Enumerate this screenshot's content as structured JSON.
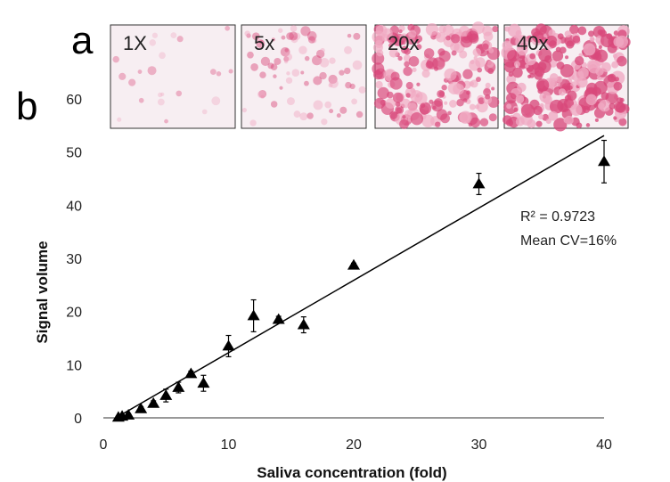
{
  "figure": {
    "panel_a": "a",
    "panel_b": "b",
    "thumbnails": [
      {
        "label": "1X",
        "density": 0.05
      },
      {
        "label": "5x",
        "density": 0.25
      },
      {
        "label": "20x",
        "density": 0.75
      },
      {
        "label": "40x",
        "density": 0.95
      }
    ],
    "colors": {
      "stain": "#d9487a",
      "stain_light": "#f0a9c2",
      "thumb_bg": "#f7eef2",
      "marker": "#000000",
      "line": "#000000"
    }
  },
  "chart_data": {
    "type": "scatter",
    "title": "",
    "xlabel": "Saliva concentration (fold)",
    "ylabel": "Signal volume",
    "xlim": [
      0,
      40
    ],
    "ylim": [
      0,
      60
    ],
    "xticks": [
      0,
      10,
      20,
      30,
      40
    ],
    "yticks": [
      0,
      10,
      20,
      30,
      40,
      50,
      60
    ],
    "grid": false,
    "marker": "triangle",
    "points": [
      {
        "x": 1.2,
        "y": 0.1,
        "err": 0.2
      },
      {
        "x": 1.5,
        "y": 0.3,
        "err": 0.2
      },
      {
        "x": 2,
        "y": 0.5,
        "err": 0.3
      },
      {
        "x": 3,
        "y": 1.7,
        "err": 0.4
      },
      {
        "x": 4,
        "y": 2.7,
        "err": 0.5
      },
      {
        "x": 5,
        "y": 4.2,
        "err": 1.2
      },
      {
        "x": 6,
        "y": 5.7,
        "err": 1.0
      },
      {
        "x": 7,
        "y": 8.3,
        "err": 0.5
      },
      {
        "x": 8,
        "y": 6.5,
        "err": 1.5
      },
      {
        "x": 10,
        "y": 13.5,
        "err": 2.0
      },
      {
        "x": 12,
        "y": 19.2,
        "err": 3.0
      },
      {
        "x": 14,
        "y": 18.5,
        "err": 0.6
      },
      {
        "x": 16,
        "y": 17.5,
        "err": 1.5
      },
      {
        "x": 20,
        "y": 28.7,
        "err": 0.4
      },
      {
        "x": 30,
        "y": 44.0,
        "err": 2.0
      },
      {
        "x": 40,
        "y": 48.2,
        "err": 4.0
      }
    ],
    "fit_line": {
      "x": [
        1,
        40
      ],
      "y": [
        0,
        53.1
      ]
    },
    "annotations": [
      "R² = 0.9723",
      "Mean CV=16%"
    ]
  }
}
